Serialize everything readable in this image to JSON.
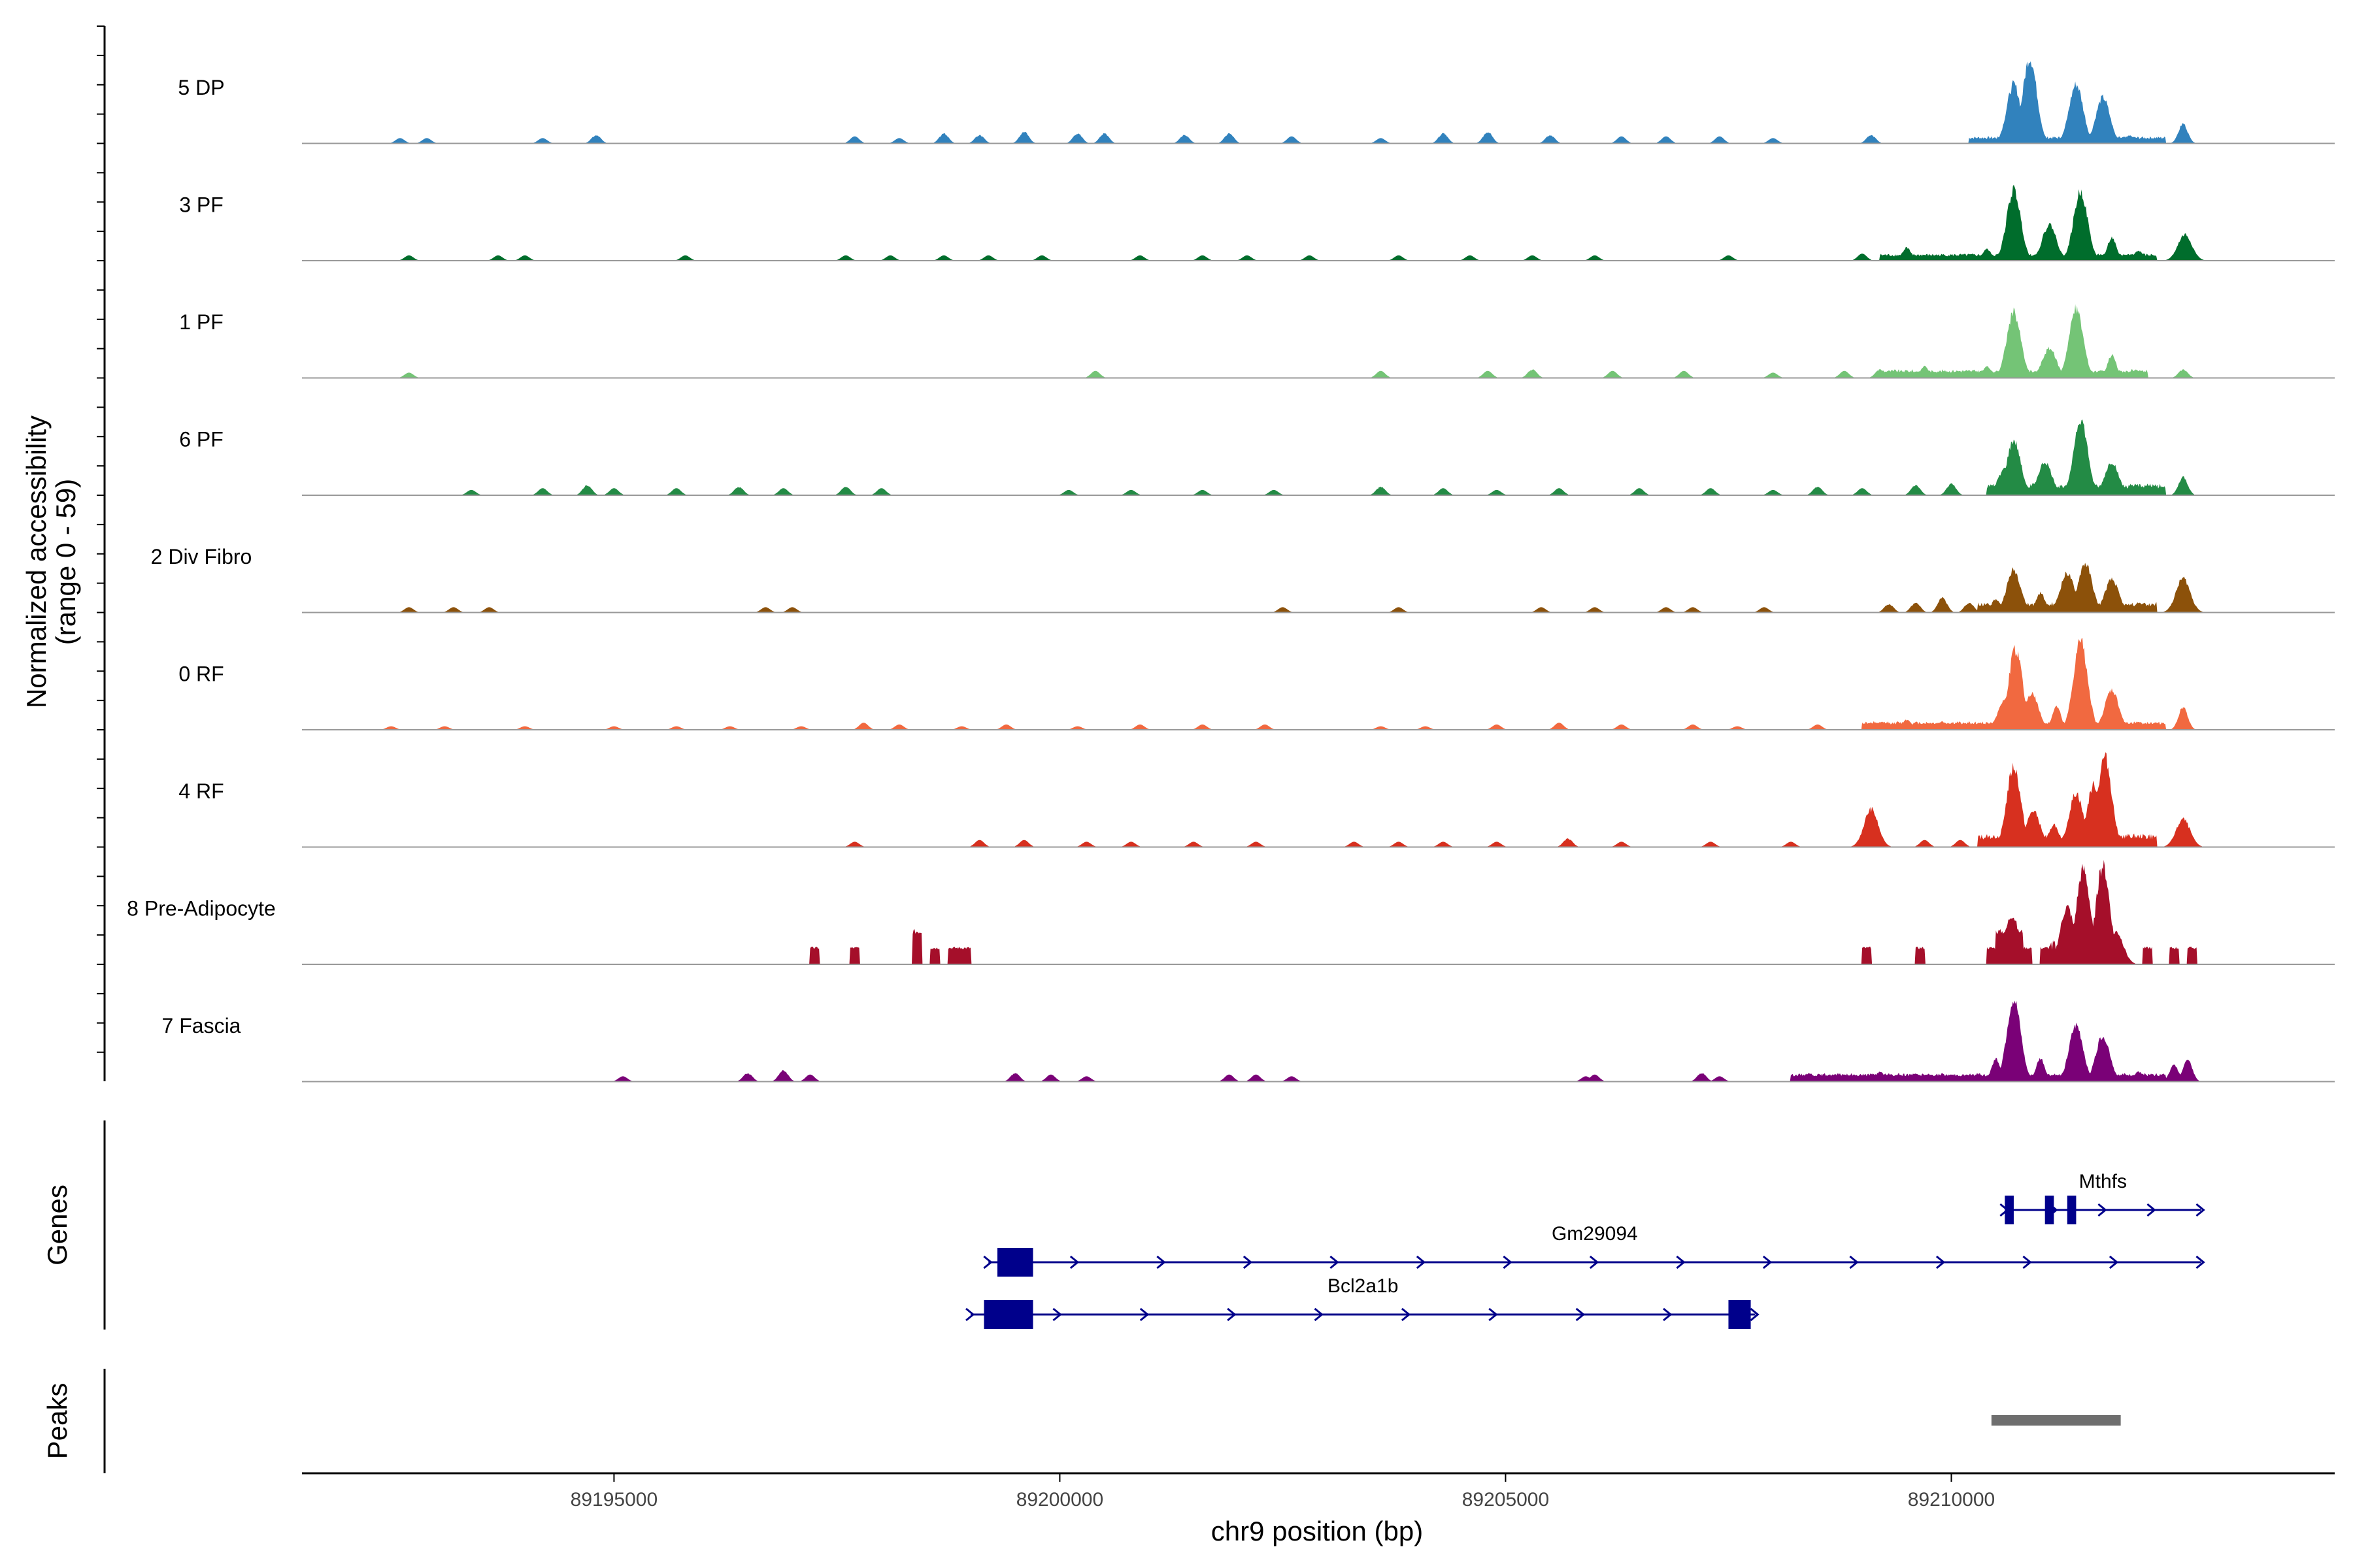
{
  "chart_data": {
    "type": "area",
    "title": "",
    "xlabel": "chr9 position (bp)",
    "ylabel_line1": "Normalized accessibility",
    "ylabel_line2": "(range 0 - 59)",
    "ylim": [
      0,
      59
    ],
    "xlim": [
      89191500,
      89214300
    ],
    "x_ticks": [
      89195000,
      89200000,
      89205000,
      89210000
    ],
    "x_tick_labels": [
      "89195000",
      "89200000",
      "89205000",
      "89210000"
    ],
    "grid": false,
    "legend": "none",
    "series": [
      {
        "name": "5 DP",
        "color": "#3182BD",
        "peaks": [
          [
            89192600,
            3
          ],
          [
            89192900,
            3
          ],
          [
            89194200,
            3
          ],
          [
            89194800,
            5
          ],
          [
            89197700,
            4
          ],
          [
            89198200,
            3
          ],
          [
            89198700,
            6
          ],
          [
            89199100,
            5
          ],
          [
            89199600,
            7
          ],
          [
            89200200,
            6
          ],
          [
            89200500,
            6
          ],
          [
            89201400,
            5
          ],
          [
            89201900,
            6
          ],
          [
            89202600,
            4
          ],
          [
            89203600,
            3
          ],
          [
            89204300,
            6
          ],
          [
            89204800,
            7
          ],
          [
            89205500,
            5
          ],
          [
            89206300,
            4
          ],
          [
            89206800,
            4
          ],
          [
            89207400,
            4
          ],
          [
            89208000,
            3
          ],
          [
            89209100,
            5
          ],
          [
            89210600,
            6
          ],
          [
            89210700,
            36
          ],
          [
            89210880,
            52
          ],
          [
            89211400,
            36
          ],
          [
            89211700,
            28
          ],
          [
            89212000,
            5
          ],
          [
            89212600,
            12
          ]
        ],
        "floor": [
          89210200,
          89212400,
          4
        ]
      },
      {
        "name": "3 PF",
        "color": "#006D2C",
        "peaks": [
          [
            89192700,
            3
          ],
          [
            89193700,
            3
          ],
          [
            89194000,
            3
          ],
          [
            89195800,
            3
          ],
          [
            89197600,
            3
          ],
          [
            89198100,
            3
          ],
          [
            89198700,
            3
          ],
          [
            89199200,
            3
          ],
          [
            89199800,
            3
          ],
          [
            89200900,
            3
          ],
          [
            89201600,
            3
          ],
          [
            89202100,
            3
          ],
          [
            89202800,
            3
          ],
          [
            89203800,
            3
          ],
          [
            89204600,
            3
          ],
          [
            89205300,
            3
          ],
          [
            89206000,
            3
          ],
          [
            89207500,
            3
          ],
          [
            89209000,
            4
          ],
          [
            89209500,
            8
          ],
          [
            89210400,
            7
          ],
          [
            89210700,
            43
          ],
          [
            89211100,
            22
          ],
          [
            89211450,
            42
          ],
          [
            89211800,
            14
          ],
          [
            89212100,
            6
          ],
          [
            89212620,
            16
          ]
        ],
        "floor": [
          89209200,
          89212300,
          4
        ]
      },
      {
        "name": "1 PF",
        "color": "#74C476",
        "peaks": [
          [
            89192700,
            3
          ],
          [
            89200400,
            4
          ],
          [
            89203600,
            4
          ],
          [
            89204800,
            4
          ],
          [
            89205300,
            5
          ],
          [
            89206200,
            4
          ],
          [
            89207000,
            4
          ],
          [
            89208000,
            3
          ],
          [
            89208800,
            4
          ],
          [
            89209200,
            5
          ],
          [
            89209700,
            7
          ],
          [
            89210400,
            7
          ],
          [
            89210700,
            40
          ],
          [
            89211100,
            18
          ],
          [
            89211400,
            42
          ],
          [
            89211800,
            14
          ],
          [
            89212600,
            5
          ]
        ],
        "floor": [
          89209200,
          89212200,
          5
        ]
      },
      {
        "name": "6 PF",
        "color": "#238B45",
        "peaks": [
          [
            89193400,
            3
          ],
          [
            89194200,
            4
          ],
          [
            89194700,
            6
          ],
          [
            89195000,
            4
          ],
          [
            89195700,
            4
          ],
          [
            89196400,
            5
          ],
          [
            89196900,
            4
          ],
          [
            89197600,
            5
          ],
          [
            89198000,
            4
          ],
          [
            89200100,
            3
          ],
          [
            89200800,
            3
          ],
          [
            89201600,
            3
          ],
          [
            89202400,
            3
          ],
          [
            89203600,
            5
          ],
          [
            89204300,
            4
          ],
          [
            89204900,
            3
          ],
          [
            89205600,
            4
          ],
          [
            89206500,
            4
          ],
          [
            89207300,
            4
          ],
          [
            89208000,
            3
          ],
          [
            89208500,
            5
          ],
          [
            89209000,
            4
          ],
          [
            89209600,
            6
          ],
          [
            89210000,
            7
          ],
          [
            89210600,
            16
          ],
          [
            89210700,
            33
          ],
          [
            89211050,
            20
          ],
          [
            89211450,
            46
          ],
          [
            89211800,
            20
          ],
          [
            89212200,
            6
          ],
          [
            89212600,
            11
          ]
        ],
        "floor": [
          89210400,
          89212400,
          7
        ]
      },
      {
        "name": "2 Div Fibro",
        "color": "#8C510A",
        "peaks": [
          [
            89192700,
            3
          ],
          [
            89193200,
            3
          ],
          [
            89193600,
            3
          ],
          [
            89196700,
            3
          ],
          [
            89197000,
            3
          ],
          [
            89202500,
            3
          ],
          [
            89203800,
            3
          ],
          [
            89205400,
            3
          ],
          [
            89206000,
            3
          ],
          [
            89206800,
            3
          ],
          [
            89207100,
            3
          ],
          [
            89207900,
            3
          ],
          [
            89209300,
            5
          ],
          [
            89209600,
            6
          ],
          [
            89209900,
            9
          ],
          [
            89210200,
            6
          ],
          [
            89210500,
            8
          ],
          [
            89210700,
            26
          ],
          [
            89211000,
            12
          ],
          [
            89211300,
            24
          ],
          [
            89211500,
            30
          ],
          [
            89211800,
            20
          ],
          [
            89212100,
            6
          ],
          [
            89212600,
            21
          ]
        ],
        "floor": [
          89210300,
          89212300,
          6
        ]
      },
      {
        "name": "0 RF",
        "color": "#F16940",
        "peaks": [
          [
            89192500,
            2
          ],
          [
            89193100,
            2
          ],
          [
            89194000,
            2
          ],
          [
            89195000,
            2
          ],
          [
            89195700,
            2
          ],
          [
            89196300,
            2
          ],
          [
            89197100,
            2
          ],
          [
            89197800,
            4
          ],
          [
            89198200,
            3
          ],
          [
            89198900,
            2
          ],
          [
            89199400,
            3
          ],
          [
            89200200,
            2
          ],
          [
            89200900,
            3
          ],
          [
            89201600,
            3
          ],
          [
            89202300,
            3
          ],
          [
            89203600,
            2
          ],
          [
            89204100,
            2
          ],
          [
            89204900,
            3
          ],
          [
            89205600,
            4
          ],
          [
            89206300,
            3
          ],
          [
            89207100,
            3
          ],
          [
            89207600,
            2
          ],
          [
            89208500,
            3
          ],
          [
            89209100,
            4
          ],
          [
            89209500,
            6
          ],
          [
            89209900,
            5
          ],
          [
            89210600,
            18
          ],
          [
            89210720,
            49
          ],
          [
            89210900,
            22
          ],
          [
            89211180,
            14
          ],
          [
            89211450,
            54
          ],
          [
            89211800,
            24
          ],
          [
            89212100,
            5
          ],
          [
            89212600,
            14
          ]
        ],
        "floor": [
          89209000,
          89212400,
          5
        ]
      },
      {
        "name": "4 RF",
        "color": "#D7301F",
        "peaks": [
          [
            89197700,
            3
          ],
          [
            89199100,
            4
          ],
          [
            89199600,
            4
          ],
          [
            89200300,
            3
          ],
          [
            89200800,
            3
          ],
          [
            89201500,
            3
          ],
          [
            89202200,
            3
          ],
          [
            89203300,
            3
          ],
          [
            89203800,
            3
          ],
          [
            89204300,
            3
          ],
          [
            89204900,
            3
          ],
          [
            89205700,
            5
          ],
          [
            89206300,
            3
          ],
          [
            89207300,
            3
          ],
          [
            89208200,
            3
          ],
          [
            89209100,
            23
          ],
          [
            89209700,
            4
          ],
          [
            89210100,
            4
          ],
          [
            89210700,
            49
          ],
          [
            89210920,
            22
          ],
          [
            89211150,
            14
          ],
          [
            89211400,
            33
          ],
          [
            89211600,
            38
          ],
          [
            89211720,
            55
          ],
          [
            89212000,
            6
          ],
          [
            89212600,
            17
          ]
        ],
        "floor": [
          89210300,
          89212300,
          8
        ]
      },
      {
        "name": "8 Pre-Adipocyte",
        "color": "#A50F2A",
        "blocks": [
          [
            89197200,
            89197300,
            10
          ],
          [
            89197650,
            89197750,
            10
          ],
          [
            89198350,
            89198450,
            20
          ],
          [
            89198550,
            89198650,
            10
          ],
          [
            89198750,
            89199000,
            10
          ],
          [
            89209000,
            89209100,
            10
          ],
          [
            89209600,
            89209700,
            10
          ],
          [
            89210400,
            89210500,
            10
          ],
          [
            89210500,
            89210800,
            20
          ],
          [
            89210800,
            89210900,
            10
          ],
          [
            89211000,
            89211100,
            10
          ]
        ],
        "peaks": [
          [
            89210680,
            30
          ],
          [
            89211300,
            35
          ],
          [
            89211480,
            58
          ],
          [
            89211700,
            60
          ],
          [
            89211850,
            20
          ]
        ],
        "floor": [
          89211100,
          89211950,
          14
        ],
        "blocks2": [
          [
            89212150,
            89212250,
            10
          ],
          [
            89212450,
            89212550,
            10
          ],
          [
            89212650,
            89212750,
            10
          ]
        ]
      },
      {
        "name": "7 Fascia",
        "color": "#7A0177",
        "peaks": [
          [
            89195100,
            3
          ],
          [
            89196500,
            5
          ],
          [
            89196900,
            7
          ],
          [
            89197200,
            4
          ],
          [
            89199500,
            5
          ],
          [
            89199900,
            4
          ],
          [
            89200300,
            3
          ],
          [
            89201900,
            4
          ],
          [
            89202200,
            4
          ],
          [
            89202600,
            3
          ],
          [
            89205900,
            3
          ],
          [
            89206000,
            4
          ],
          [
            89207200,
            5
          ],
          [
            89207400,
            3
          ],
          [
            89208400,
            5
          ],
          [
            89208800,
            4
          ],
          [
            89209200,
            6
          ],
          [
            89209600,
            5
          ],
          [
            89210000,
            4
          ],
          [
            89210500,
            14
          ],
          [
            89210700,
            50
          ],
          [
            89211000,
            14
          ],
          [
            89211400,
            34
          ],
          [
            89211700,
            28
          ],
          [
            89212100,
            6
          ],
          [
            89212500,
            10
          ],
          [
            89212650,
            14
          ]
        ],
        "floor": [
          89208200,
          89212400,
          5
        ]
      }
    ],
    "genes_label": "Genes",
    "genes": [
      {
        "name": "Mthfs",
        "start": 89210600,
        "end": 89212800,
        "row": 0,
        "exons": [
          [
            89210600,
            89210700
          ],
          [
            89211050,
            89211150
          ],
          [
            89211300,
            89211400
          ]
        ]
      },
      {
        "name": "Gm29094",
        "start": 89199200,
        "end": 89212800,
        "row": 1,
        "exons": [
          [
            89199300,
            89199700
          ]
        ]
      },
      {
        "name": "Bcl2a1b",
        "start": 89199000,
        "end": 89207800,
        "row": 2,
        "exons": [
          [
            89199150,
            89199700
          ],
          [
            89207500,
            89207750
          ]
        ]
      }
    ],
    "peaks_label": "Peaks",
    "peak_regions": [
      [
        89210450,
        89211900
      ]
    ]
  }
}
